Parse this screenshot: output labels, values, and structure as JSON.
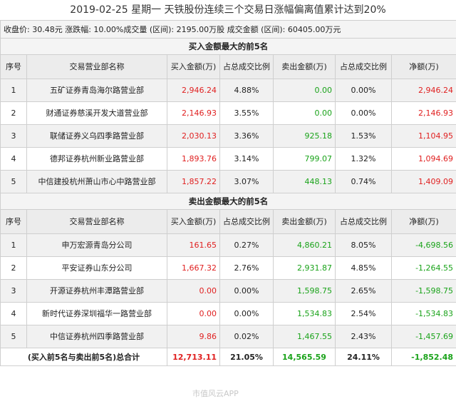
{
  "title": "2019-02-25  星期一  天铁股份连续三个交易日涨幅偏离值累计达到20%",
  "summary": "收盘价: 30.48元  涨跌幅: 10.00%成交量 (区间): 2195.00万股  成交金额 (区间): 60405.00万元",
  "buy_section": {
    "heading": "买入金额最大的前5名",
    "headers": [
      "序号",
      "交易营业部名称",
      "买入金额(万)",
      "占总成交比例",
      "卖出金额(万)",
      "占总成交比例",
      "净额(万)"
    ],
    "rows": [
      {
        "no": "1",
        "name": "五矿证券青岛海尔路营业部",
        "buy": "2,946.24",
        "buy_pct": "4.88%",
        "sell": "0.00",
        "sell_pct": "0.00%",
        "net": "2,946.24"
      },
      {
        "no": "2",
        "name": "财通证券慈溪开发大道营业部",
        "buy": "2,146.93",
        "buy_pct": "3.55%",
        "sell": "0.00",
        "sell_pct": "0.00%",
        "net": "2,146.93"
      },
      {
        "no": "3",
        "name": "联储证券义乌四季路营业部",
        "buy": "2,030.13",
        "buy_pct": "3.36%",
        "sell": "925.18",
        "sell_pct": "1.53%",
        "net": "1,104.95"
      },
      {
        "no": "4",
        "name": "德邦证券杭州新业路营业部",
        "buy": "1,893.76",
        "buy_pct": "3.14%",
        "sell": "799.07",
        "sell_pct": "1.32%",
        "net": "1,094.69"
      },
      {
        "no": "5",
        "name": "中信建投杭州萧山市心中路营业部",
        "buy": "1,857.22",
        "buy_pct": "3.07%",
        "sell": "448.13",
        "sell_pct": "0.74%",
        "net": "1,409.09"
      }
    ]
  },
  "sell_section": {
    "heading": "卖出金额最大的前5名",
    "headers": [
      "序号",
      "交易营业部名称",
      "买入金额(万)",
      "占总成交比例",
      "卖出金额(万)",
      "占总成交比例",
      "净额(万)"
    ],
    "rows": [
      {
        "no": "1",
        "name": "申万宏源青岛分公司",
        "buy": "161.65",
        "buy_pct": "0.27%",
        "sell": "4,860.21",
        "sell_pct": "8.05%",
        "net": "-4,698.56"
      },
      {
        "no": "2",
        "name": "平安证券山东分公司",
        "buy": "1,667.32",
        "buy_pct": "2.76%",
        "sell": "2,931.87",
        "sell_pct": "4.85%",
        "net": "-1,264.55"
      },
      {
        "no": "3",
        "name": "开源证券杭州丰潭路营业部",
        "buy": "0.00",
        "buy_pct": "0.00%",
        "sell": "1,598.75",
        "sell_pct": "2.65%",
        "net": "-1,598.75"
      },
      {
        "no": "4",
        "name": "新时代证券深圳福华一路营业部",
        "buy": "0.00",
        "buy_pct": "0.00%",
        "sell": "1,534.83",
        "sell_pct": "2.54%",
        "net": "-1,534.83"
      },
      {
        "no": "5",
        "name": "中信证券杭州四季路营业部",
        "buy": "9.86",
        "buy_pct": "0.02%",
        "sell": "1,467.55",
        "sell_pct": "2.43%",
        "net": "-1,457.69"
      }
    ]
  },
  "total": {
    "label": "(买入前5名与卖出前5名)总合计",
    "buy": "12,713.11",
    "buy_pct": "21.05%",
    "sell": "14,565.59",
    "sell_pct": "24.11%",
    "net": "-1,852.48"
  },
  "watermark": "市值风云APP",
  "colors": {
    "positive": "#e02020",
    "negative": "#1aa31a"
  }
}
